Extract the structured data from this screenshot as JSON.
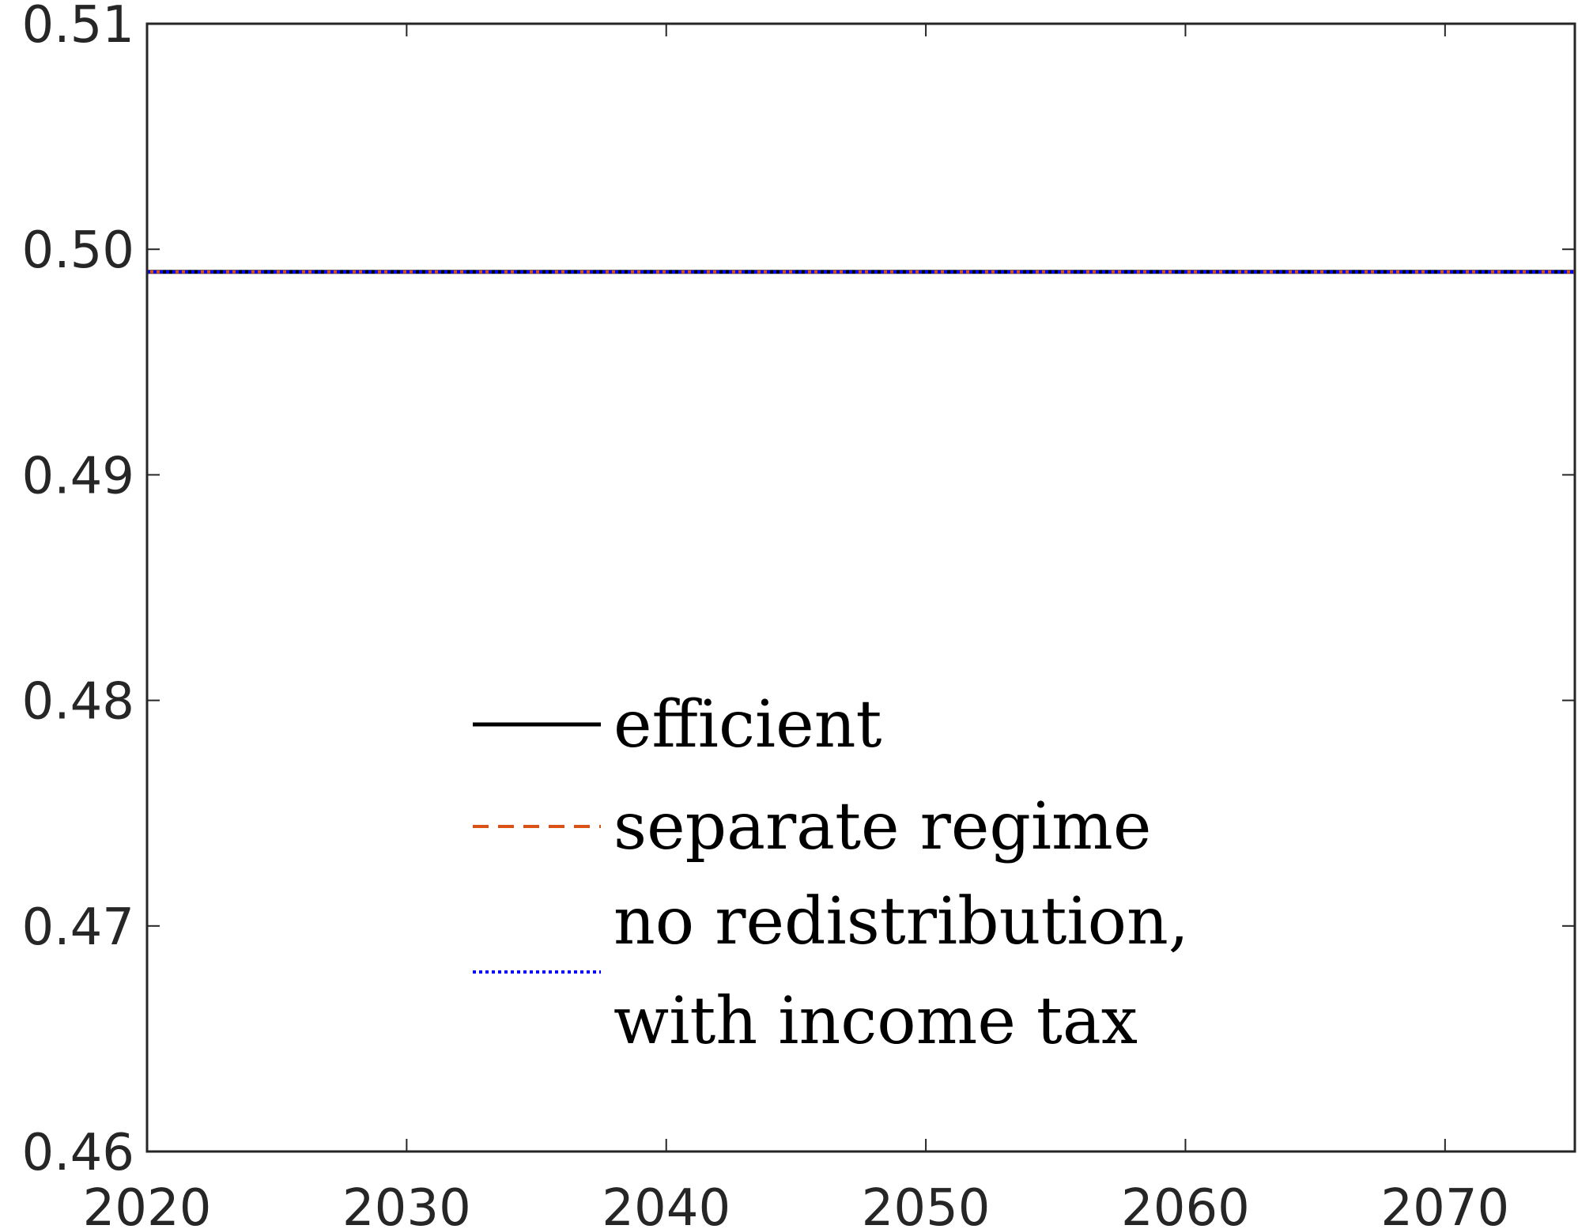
{
  "chart_data": {
    "type": "line",
    "title": "",
    "xlabel": "",
    "ylabel": "",
    "xlim": [
      2020,
      2075
    ],
    "ylim": [
      0.46,
      0.51
    ],
    "x_ticks": [
      2020,
      2030,
      2040,
      2050,
      2060,
      2070
    ],
    "x_tick_labels": [
      "2020",
      "2030",
      "2040",
      "2050",
      "2060",
      "2070"
    ],
    "y_ticks": [
      0.46,
      0.47,
      0.48,
      0.49,
      0.5,
      0.51
    ],
    "y_tick_labels": [
      "0.46",
      "0.47",
      "0.48",
      "0.49",
      "0.50",
      "0.51"
    ],
    "grid": false,
    "legend_position": "lower-center",
    "series": [
      {
        "name": "efficient",
        "style": "solid",
        "color": "#000000",
        "x": [
          2020,
          2075
        ],
        "y": [
          0.499,
          0.499
        ]
      },
      {
        "name": "separate regime",
        "style": "dashed",
        "color": "#D95319",
        "x": [
          2020,
          2075
        ],
        "y": [
          0.499,
          0.499
        ]
      },
      {
        "name": "no redistribution, with income tax",
        "legend_lines": [
          "no redistribution,",
          "with income tax"
        ],
        "style": "dotted",
        "color": "#0000FF",
        "x": [
          2020,
          2075
        ],
        "y": [
          0.499,
          0.499
        ]
      }
    ]
  }
}
